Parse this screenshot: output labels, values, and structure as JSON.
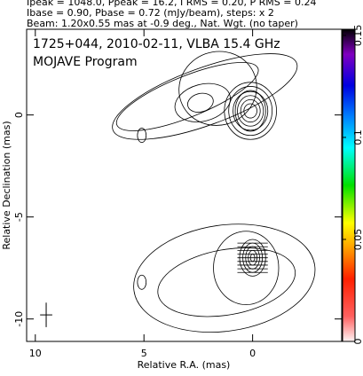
{
  "chart_data": {
    "type": "contour",
    "header": [
      "Ipeak = 1048.0, Ppeak = 16.2, I RMS = 0.20, P RMS = 0.24",
      "Ibase = 0.90, Pbase = 0.72 (mJy/beam), steps: x 2",
      "Beam: 1.20x0.55 mas at -0.9 deg., Nat. Wgt. (no taper)"
    ],
    "title": "1725+044, 2010-02-11, VLBA 15.4 GHz",
    "subtitle": "MOJAVE Program",
    "xlabel": "Relative R.A. (mas)",
    "ylabel": "Relative Declination (mas)",
    "xlim": [
      10.4,
      -4.1
    ],
    "xticks": [
      10,
      5,
      0
    ],
    "ylim": [
      -11.1,
      4.2
    ],
    "yticks": [
      0,
      -5,
      -10
    ],
    "clim": [
      0,
      0.153
    ],
    "cticks": [
      0,
      0.05,
      0.1,
      0.15
    ]
  }
}
